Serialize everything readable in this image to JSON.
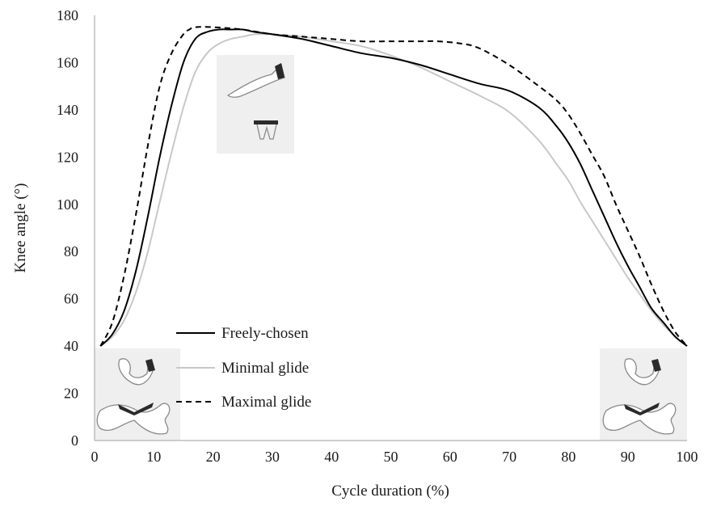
{
  "chart_data": {
    "type": "line",
    "title": "",
    "xlabel": "Cycle duration (%)",
    "ylabel": "Knee angle (°)",
    "xlim": [
      0,
      100
    ],
    "ylim": [
      0,
      180
    ],
    "xticks": [
      0,
      10,
      20,
      30,
      40,
      50,
      60,
      70,
      80,
      90,
      100
    ],
    "yticks": [
      0,
      20,
      40,
      60,
      80,
      100,
      120,
      140,
      160,
      180
    ],
    "grid": false,
    "legend_position": "bottom-left",
    "series": [
      {
        "name": "Freely-chosen",
        "color": "#000000",
        "style": "solid",
        "x": [
          1,
          3,
          5,
          7,
          9,
          11,
          13,
          15,
          17,
          19,
          21,
          23,
          25,
          27,
          30,
          35,
          40,
          45,
          50,
          55,
          60,
          65,
          70,
          75,
          78,
          80,
          82,
          84,
          86,
          88,
          90,
          92,
          94,
          96,
          98,
          100
        ],
        "y": [
          40,
          45,
          55,
          72,
          95,
          120,
          142,
          160,
          170,
          173,
          174,
          174,
          174,
          173,
          172,
          170,
          167,
          164,
          162,
          159,
          155,
          151,
          148,
          141,
          133,
          126,
          117,
          106,
          95,
          84,
          74,
          65,
          56,
          50,
          44,
          40
        ]
      },
      {
        "name": "Minimal glide",
        "color": "#c8c8c8",
        "style": "solid",
        "x": [
          1,
          3,
          5,
          7,
          9,
          11,
          13,
          15,
          17,
          19,
          21,
          23,
          25,
          27,
          29,
          30,
          35,
          40,
          45,
          50,
          55,
          60,
          65,
          70,
          75,
          78,
          80,
          82,
          84,
          86,
          88,
          90,
          92,
          94,
          96,
          98,
          100
        ],
        "y": [
          40,
          44,
          51,
          63,
          80,
          101,
          122,
          141,
          156,
          164,
          168,
          170,
          171,
          172,
          172,
          172,
          171,
          169,
          167,
          163,
          158,
          152,
          146,
          139,
          127,
          117,
          110,
          101,
          93,
          85,
          77,
          69,
          62,
          55,
          49,
          44,
          40
        ]
      },
      {
        "name": "Maximal glide",
        "color": "#000000",
        "style": "dashed",
        "x": [
          1,
          3,
          5,
          7,
          9,
          11,
          13,
          15,
          16,
          17,
          20,
          25,
          30,
          35,
          40,
          45,
          50,
          55,
          58,
          62,
          65,
          70,
          75,
          78,
          80,
          82,
          84,
          86,
          88,
          90,
          92,
          94,
          96,
          98,
          100
        ],
        "y": [
          40,
          50,
          70,
          96,
          125,
          150,
          164,
          172,
          174,
          175,
          175,
          174,
          172,
          171,
          170,
          169,
          169,
          169,
          169,
          168,
          166,
          159,
          150,
          144,
          138,
          130,
          121,
          112,
          100,
          89,
          78,
          66,
          55,
          46,
          40
        ]
      }
    ]
  }
}
